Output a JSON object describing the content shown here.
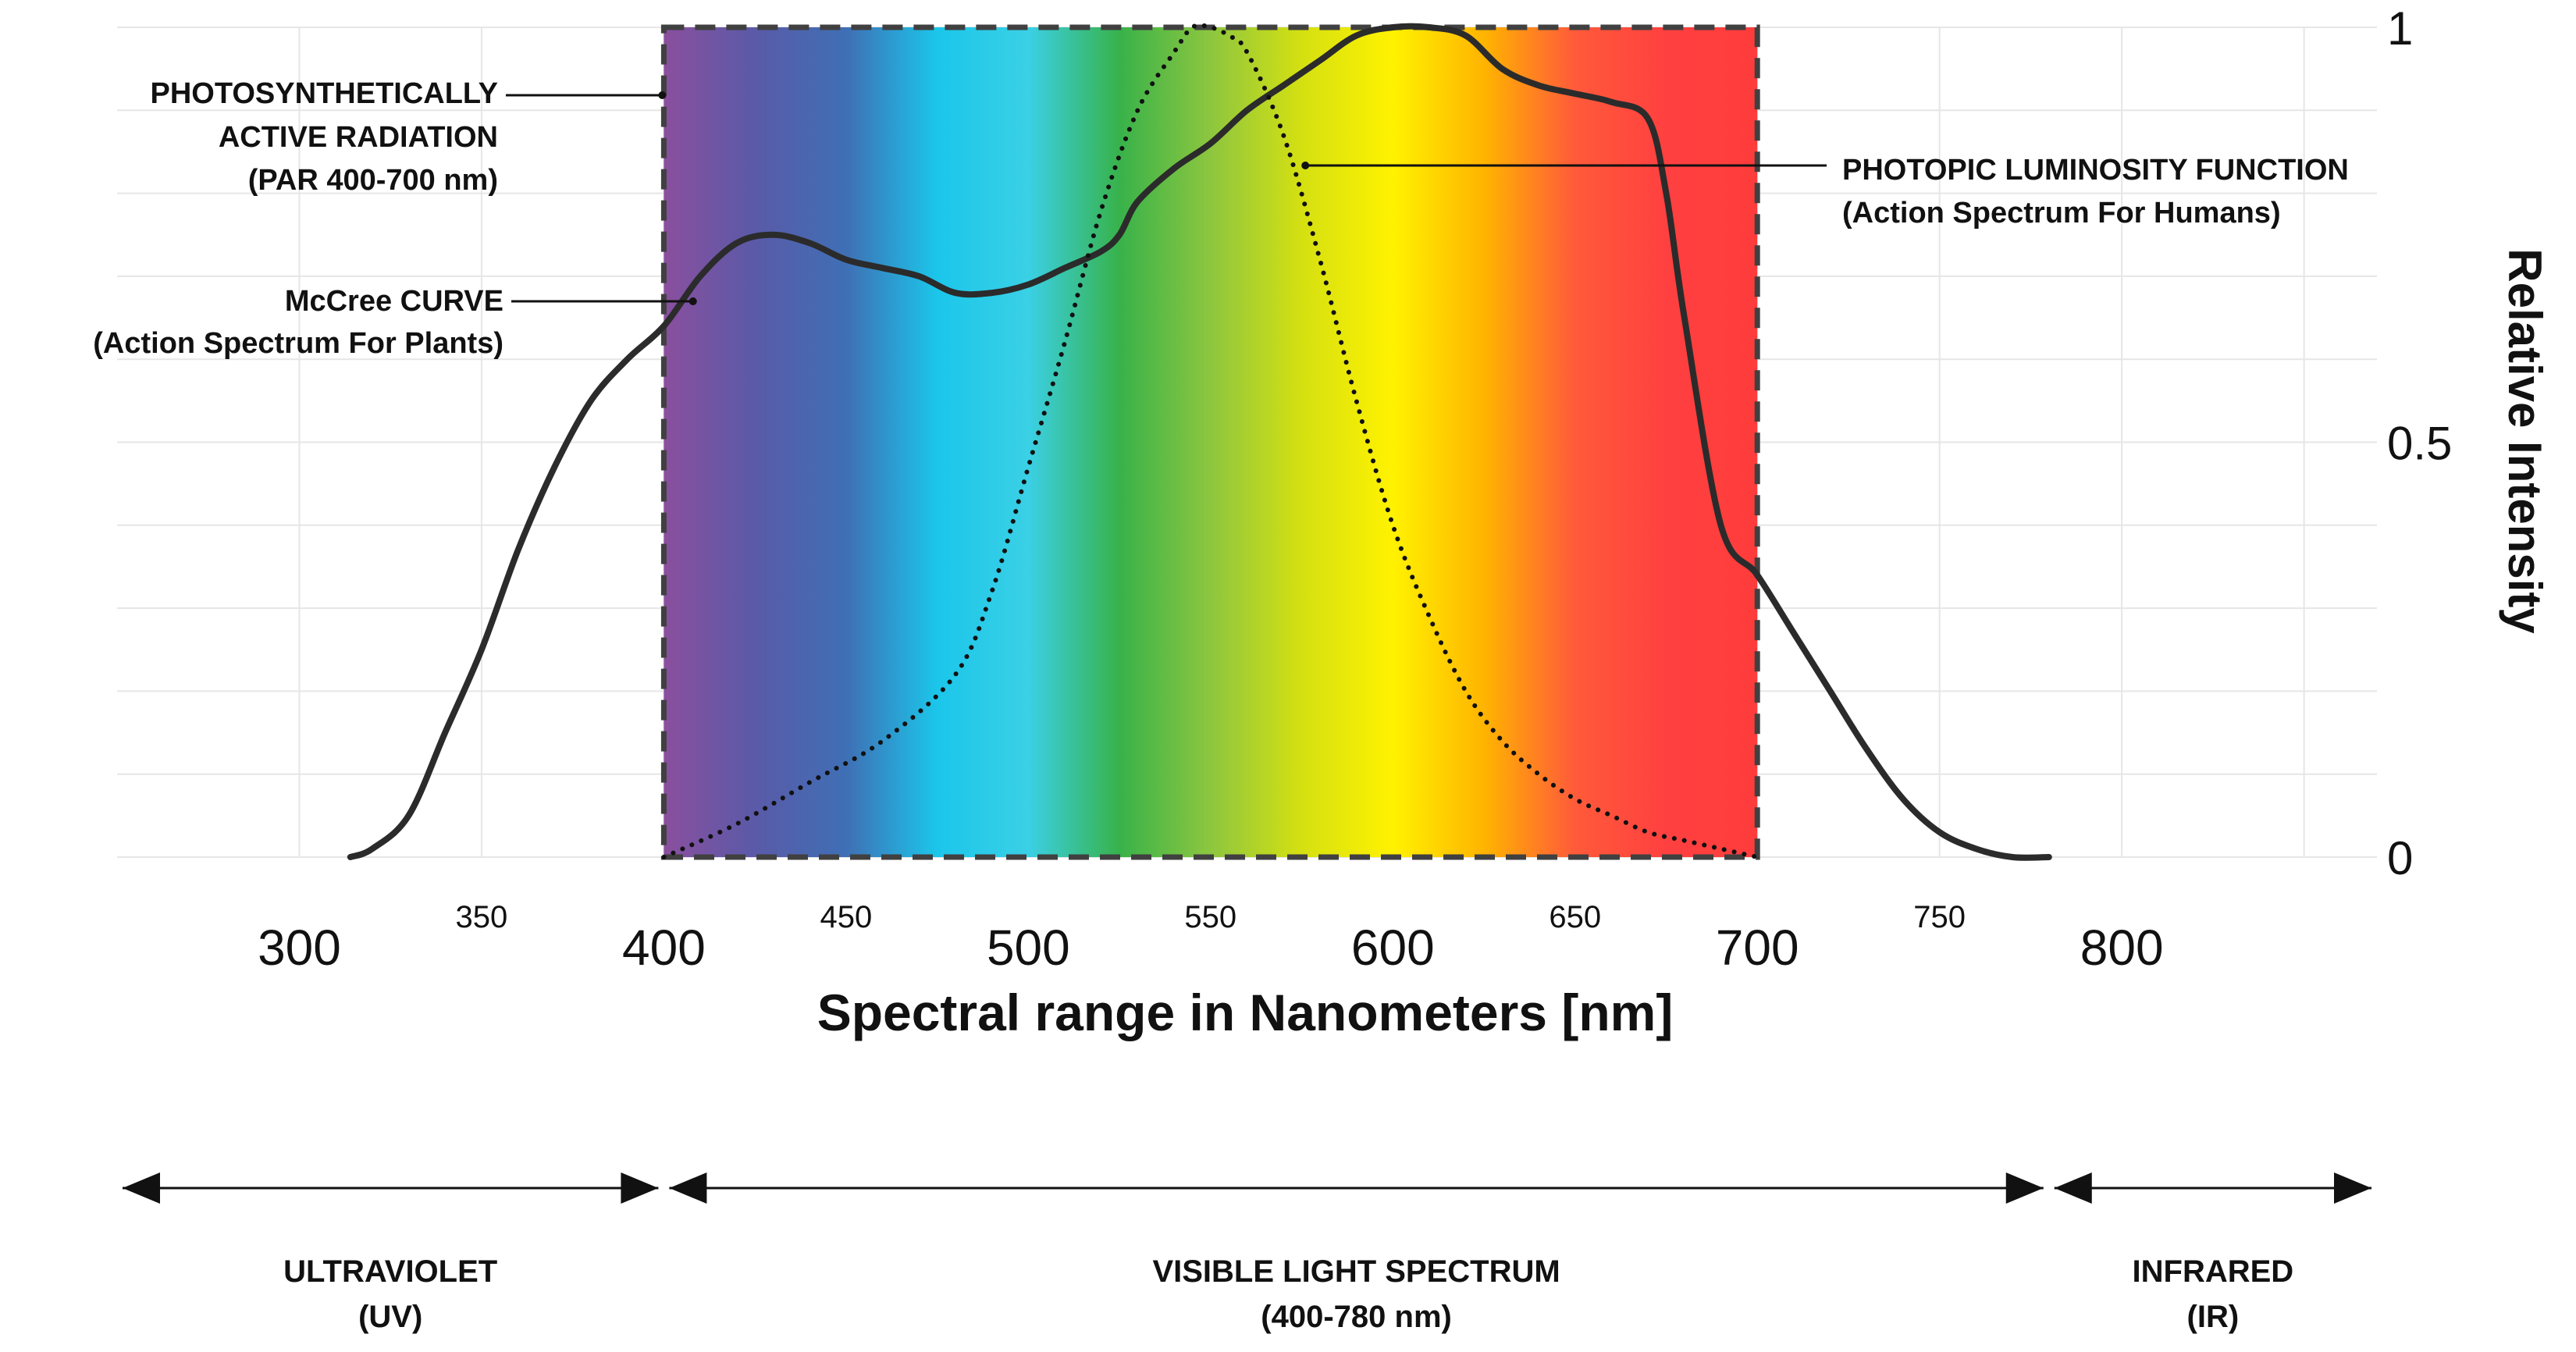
{
  "chart_data": {
    "type": "line",
    "title": "",
    "xlabel": "Spectral range in Nanometers [nm]",
    "ylabel": "Relative Intensity",
    "xlim": [
      250,
      870
    ],
    "ylim": [
      0,
      1
    ],
    "grid": true,
    "major_x_ticks": [
      {
        "value": 300,
        "label": "300"
      },
      {
        "value": 400,
        "label": "400"
      },
      {
        "value": 500,
        "label": "500"
      },
      {
        "value": 600,
        "label": "600"
      },
      {
        "value": 700,
        "label": "700"
      },
      {
        "value": 800,
        "label": "800"
      }
    ],
    "minor_x_ticks": [
      {
        "value": 350,
        "label": "350"
      },
      {
        "value": 450,
        "label": "450"
      },
      {
        "value": 550,
        "label": "550"
      },
      {
        "value": 650,
        "label": "650"
      },
      {
        "value": 750,
        "label": "750"
      }
    ],
    "y_ticks": [
      {
        "value": 0,
        "label": "0"
      },
      {
        "value": 0.5,
        "label": "0.5"
      },
      {
        "value": 1,
        "label": "1"
      }
    ],
    "spectrum_gradient": {
      "x_start": 400,
      "x_end": 700,
      "colors": [
        "#8a4f9e",
        "#5a5aa8",
        "#3f6fb5",
        "#1bc6ea",
        "#3ad0e6",
        "#38b24a",
        "#8dc63f",
        "#d5e011",
        "#fff200",
        "#ffb400",
        "#ff5a3a",
        "#ff4040",
        "#ff3c3c"
      ]
    },
    "par_box": {
      "x_start": 400,
      "x_end": 700,
      "y_start": 0,
      "y_end": 1
    },
    "series": [
      {
        "name": "McCree CURVE",
        "style": "solid",
        "color": "#2b2b2b",
        "x": [
          314,
          320,
          330,
          340,
          350,
          360,
          370,
          380,
          390,
          400,
          410,
          420,
          430,
          440,
          450,
          460,
          470,
          480,
          490,
          500,
          510,
          520,
          525,
          530,
          540,
          550,
          560,
          570,
          580,
          590,
          600,
          610,
          620,
          630,
          640,
          650,
          660,
          670,
          675,
          680,
          690,
          700,
          710,
          720,
          730,
          740,
          750,
          760,
          770,
          780
        ],
        "y": [
          0.0,
          0.01,
          0.05,
          0.15,
          0.25,
          0.37,
          0.47,
          0.55,
          0.6,
          0.64,
          0.7,
          0.74,
          0.75,
          0.74,
          0.72,
          0.71,
          0.7,
          0.68,
          0.68,
          0.69,
          0.71,
          0.73,
          0.75,
          0.79,
          0.83,
          0.86,
          0.9,
          0.93,
          0.96,
          0.99,
          1.0,
          1.0,
          0.99,
          0.95,
          0.93,
          0.92,
          0.91,
          0.89,
          0.8,
          0.65,
          0.4,
          0.34,
          0.27,
          0.2,
          0.13,
          0.07,
          0.03,
          0.01,
          0.0,
          0.0
        ]
      },
      {
        "name": "PHOTOPIC LUMINOSITY FUNCTION",
        "style": "dotted",
        "color": "#111111",
        "x": [
          400,
          420,
          440,
          460,
          480,
          490,
          500,
          510,
          520,
          530,
          540,
          545,
          550,
          555,
          560,
          570,
          580,
          590,
          600,
          610,
          620,
          630,
          640,
          650,
          660,
          670,
          680,
          690,
          700
        ],
        "y": [
          0.0,
          0.04,
          0.09,
          0.14,
          0.22,
          0.32,
          0.47,
          0.62,
          0.78,
          0.9,
          0.97,
          1.0,
          1.0,
          0.99,
          0.97,
          0.87,
          0.72,
          0.55,
          0.4,
          0.29,
          0.2,
          0.14,
          0.1,
          0.07,
          0.05,
          0.03,
          0.02,
          0.01,
          0.0
        ]
      }
    ],
    "annotations": [
      {
        "lines": [
          "PHOTOSYNTHETICALLY",
          "ACTIVE RADIATION",
          "(PAR 400-700 nm)"
        ],
        "target_x": 400,
        "target_y": 0.92
      },
      {
        "lines": [
          "McCree CURVE",
          "(Action Spectrum For Plants)"
        ],
        "target_x": 408,
        "target_y": 0.67
      },
      {
        "lines": [
          "PHOTOPIC LUMINOSITY FUNCTION",
          "(Action Spectrum For Humans)"
        ],
        "target_x": 576,
        "target_y": 0.84
      }
    ],
    "ranges": [
      {
        "label": "ULTRAVIOLET",
        "sub": "(UV)",
        "start": 250,
        "end": 400
      },
      {
        "label": "VISIBLE LIGHT SPECTRUM",
        "sub": "(400-780 nm)",
        "start": 400,
        "end": 780
      },
      {
        "label": "INFRARED",
        "sub": "(IR)",
        "start": 780,
        "end": 870
      }
    ]
  }
}
